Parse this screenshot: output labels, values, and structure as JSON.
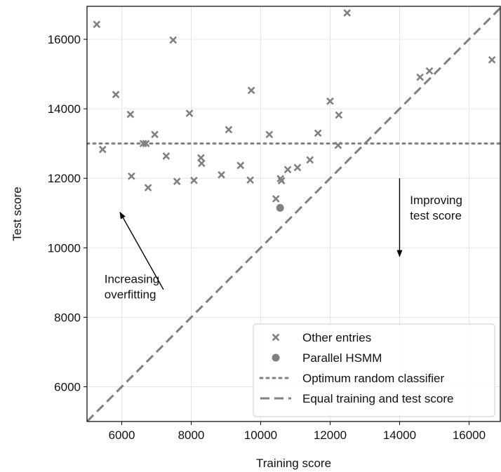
{
  "chart_data": {
    "type": "scatter",
    "xlabel": "Training score",
    "ylabel": "Test score",
    "xlim": [
      5000,
      16900
    ],
    "ylim": [
      5000,
      16950
    ],
    "xticks": [
      6000,
      8000,
      10000,
      12000,
      14000,
      16000
    ],
    "yticks": [
      6000,
      8000,
      10000,
      12000,
      14000,
      16000
    ],
    "xtick_labels": [
      "6000",
      "8000",
      "10000",
      "12000",
      "14000",
      "16000"
    ],
    "ytick_labels": [
      "6000",
      "8000",
      "10000",
      "12000",
      "14000",
      "16000"
    ],
    "grid": true,
    "legend_position": "bottom-right",
    "series": [
      {
        "name": "Other entries",
        "marker": "x",
        "color": "#808080",
        "points": [
          [
            5280,
            16430
          ],
          [
            5450,
            12830
          ],
          [
            5830,
            14410
          ],
          [
            6250,
            13840
          ],
          [
            6280,
            12060
          ],
          [
            6620,
            13000
          ],
          [
            6700,
            13000
          ],
          [
            6760,
            11730
          ],
          [
            6950,
            13260
          ],
          [
            7280,
            12640
          ],
          [
            7480,
            15980
          ],
          [
            7590,
            11910
          ],
          [
            7950,
            13870
          ],
          [
            8080,
            11940
          ],
          [
            8280,
            12590
          ],
          [
            8300,
            12430
          ],
          [
            8870,
            12100
          ],
          [
            9080,
            13400
          ],
          [
            9420,
            12370
          ],
          [
            9700,
            11950
          ],
          [
            9730,
            14530
          ],
          [
            10250,
            13260
          ],
          [
            10440,
            11410
          ],
          [
            10570,
            11990
          ],
          [
            10600,
            11930
          ],
          [
            10780,
            12250
          ],
          [
            11060,
            12310
          ],
          [
            11420,
            12530
          ],
          [
            11650,
            13300
          ],
          [
            12000,
            14220
          ],
          [
            12230,
            12950
          ],
          [
            12250,
            13820
          ],
          [
            12490,
            16760
          ],
          [
            14590,
            14910
          ],
          [
            14860,
            15090
          ],
          [
            16660,
            15410
          ]
        ]
      },
      {
        "name": "Parallel HSMM",
        "marker": "o",
        "color": "#808080",
        "points": [
          [
            10560,
            11150
          ]
        ]
      }
    ],
    "reference_lines": [
      {
        "name": "Optimum random classifier",
        "style": "dotted",
        "type": "horizontal",
        "y": 13000,
        "color": "#808080"
      },
      {
        "name": "Equal training and test score",
        "style": "dashed",
        "type": "diagonal",
        "slope": 1,
        "color": "#808080"
      }
    ],
    "annotations": [
      {
        "lines": [
          "Increasing",
          "overfitting"
        ],
        "text_at": [
          5500,
          8990
        ],
        "arrow_from": [
          7200,
          8800
        ],
        "arrow_to": [
          5950,
          11020
        ]
      },
      {
        "lines": [
          "Improving",
          "test score"
        ],
        "text_at": [
          14300,
          11260
        ],
        "arrow_from": [
          14000,
          12000
        ],
        "arrow_to": [
          14000,
          9750
        ]
      }
    ]
  }
}
